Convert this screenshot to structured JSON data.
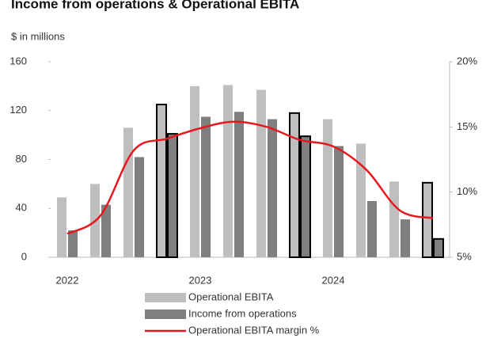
{
  "chart_data": {
    "type": "bar-line",
    "title": "Income from operations & Operational EBITA",
    "y_label": "$ in millions",
    "categories": [
      "2022",
      null,
      null,
      null,
      "2023",
      null,
      null,
      null,
      "2024",
      null,
      null,
      null
    ],
    "series": [
      {
        "name": "Operational EBITA",
        "color": "#bfbfbf",
        "values": [
          49,
          60,
          106,
          125,
          140,
          141,
          137,
          118,
          113,
          93,
          62,
          61
        ]
      },
      {
        "name": "Income from operations",
        "color": "#7f7f7f",
        "values": [
          22,
          43,
          82,
          101,
          115,
          119,
          113,
          99,
          91,
          46,
          31,
          15
        ]
      },
      {
        "name": "Operational EBITA margin %",
        "color": "#e8171f",
        "type": "line",
        "axis": "y2",
        "values": [
          6.8,
          8.2,
          13.2,
          14.1,
          14.9,
          15.4,
          15.0,
          14.0,
          13.5,
          11.7,
          8.6,
          8.0
        ]
      }
    ],
    "outlined": [
      3,
      7,
      11
    ],
    "ylim": [
      0,
      160
    ],
    "yticks": [
      0,
      40,
      80,
      120,
      160
    ],
    "y2lim": [
      5,
      20
    ],
    "y2ticks": [
      {
        "value": 5,
        "label": "5%"
      },
      {
        "value": 10,
        "label": "10%"
      },
      {
        "value": 15,
        "label": "15%"
      },
      {
        "value": 20,
        "label": "20%"
      }
    ]
  }
}
